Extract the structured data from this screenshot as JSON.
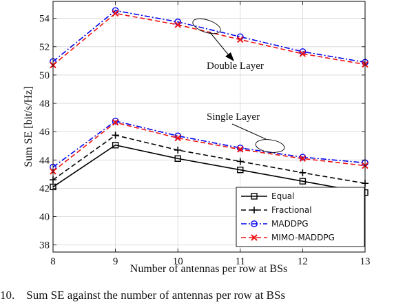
{
  "chart_data": {
    "type": "line",
    "xlabel": "Number of antennas per row at BSs",
    "ylabel": "Sum SE [bit/s/Hz]",
    "x": [
      8,
      9,
      10,
      11,
      12,
      13
    ],
    "xticks": [
      "8",
      "9",
      "10",
      "11",
      "12",
      "13"
    ],
    "ylim": [
      37.5,
      55.2
    ],
    "yticks": [
      38,
      40,
      42,
      44,
      46,
      48,
      50,
      52,
      54
    ],
    "grid": true,
    "legend_position": "bottom-right",
    "series": [
      {
        "name": "Equal",
        "color": "#000000",
        "dash": "solid",
        "marker": "square",
        "values": [
          42.1,
          45.05,
          44.1,
          43.3,
          42.5,
          41.7
        ]
      },
      {
        "name": "Fractional",
        "color": "#000000",
        "dash": "dashed",
        "marker": "plus",
        "values": [
          42.6,
          45.75,
          44.7,
          43.9,
          43.1,
          42.35
        ]
      },
      {
        "name": "MADDPG",
        "color": "#0000ee",
        "dash": "dashdot",
        "marker": "circle",
        "values": [
          43.5,
          46.75,
          45.7,
          44.85,
          44.2,
          43.8
        ]
      },
      {
        "name": "MIMO-MADDPG",
        "color": "#ee1111",
        "dash": "dashed",
        "marker": "x",
        "values": [
          43.2,
          46.65,
          45.55,
          44.75,
          44.1,
          43.6
        ]
      },
      {
        "name": "MADDPG",
        "color": "#0000ee",
        "dash": "dashdot",
        "marker": "circle",
        "values": [
          50.95,
          54.55,
          53.75,
          52.7,
          51.65,
          50.9
        ]
      },
      {
        "name": "MIMO-MADDPG",
        "color": "#ee1111",
        "dash": "dashed",
        "marker": "x",
        "values": [
          50.7,
          54.35,
          53.55,
          52.5,
          51.5,
          50.75
        ]
      }
    ],
    "legend": [
      "Equal",
      "Fractional",
      "MADDPG",
      "MIMO-MADDPG"
    ],
    "annotations": [
      {
        "text": "Double Layer"
      },
      {
        "text": "Single Layer"
      }
    ]
  },
  "caption": "10.    Sum SE against the number of antennas per row at BSs"
}
